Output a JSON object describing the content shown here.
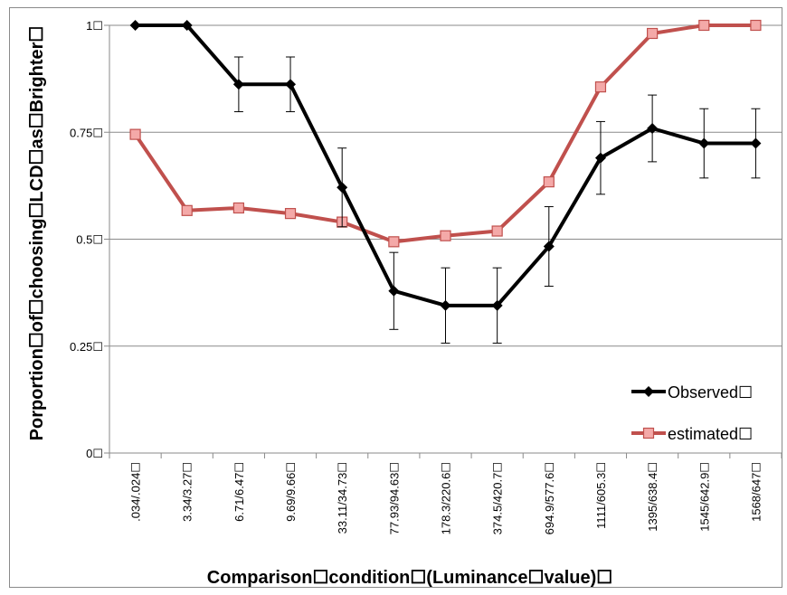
{
  "chart_data": {
    "type": "line",
    "title": "",
    "xlabel": "Comparison☐condition☐(Luminance☐value)☐",
    "ylabel": "Porportion☐of☐choosing☐LCD☐as☐Brighter☐",
    "categories": [
      ".034/.024☐",
      "3.34/3.27☐",
      "6.71/6.47☐",
      "9.69/9.66☐",
      "33.11/34.73☐",
      "77.93/94.63☐",
      "178.3/220.6☐",
      "374.5/420.7☐",
      "694.9/577.6☐",
      "1111/605.3☐",
      "1395/638.4☐",
      "1545/642.9☐",
      "1568/647☐"
    ],
    "ylim": [
      0,
      1
    ],
    "yticks": [
      0,
      0.25,
      0.5,
      0.75,
      1
    ],
    "ytick_labels": [
      "0☐",
      "0.25☐",
      "0.5☐",
      "0.75☐",
      "1☐"
    ],
    "grid": true,
    "legend_position": "bottom-right",
    "series": [
      {
        "name": "Observed☐",
        "color": "#000000",
        "marker": "diamond",
        "values": [
          1.0,
          1.0,
          0.862,
          0.862,
          0.621,
          0.379,
          0.345,
          0.345,
          0.483,
          0.69,
          0.759,
          0.724,
          0.724
        ],
        "error": [
          0,
          0,
          0.064,
          0.064,
          0.092,
          0.09,
          0.088,
          0.088,
          0.093,
          0.085,
          0.078,
          0.081,
          0.081
        ]
      },
      {
        "name": "estimated☐",
        "color": "#c0504d",
        "marker": "square",
        "values": [
          0.745,
          0.567,
          0.573,
          0.56,
          0.54,
          0.494,
          0.508,
          0.519,
          0.634,
          0.856,
          0.981,
          1.0,
          1.0
        ]
      }
    ]
  }
}
